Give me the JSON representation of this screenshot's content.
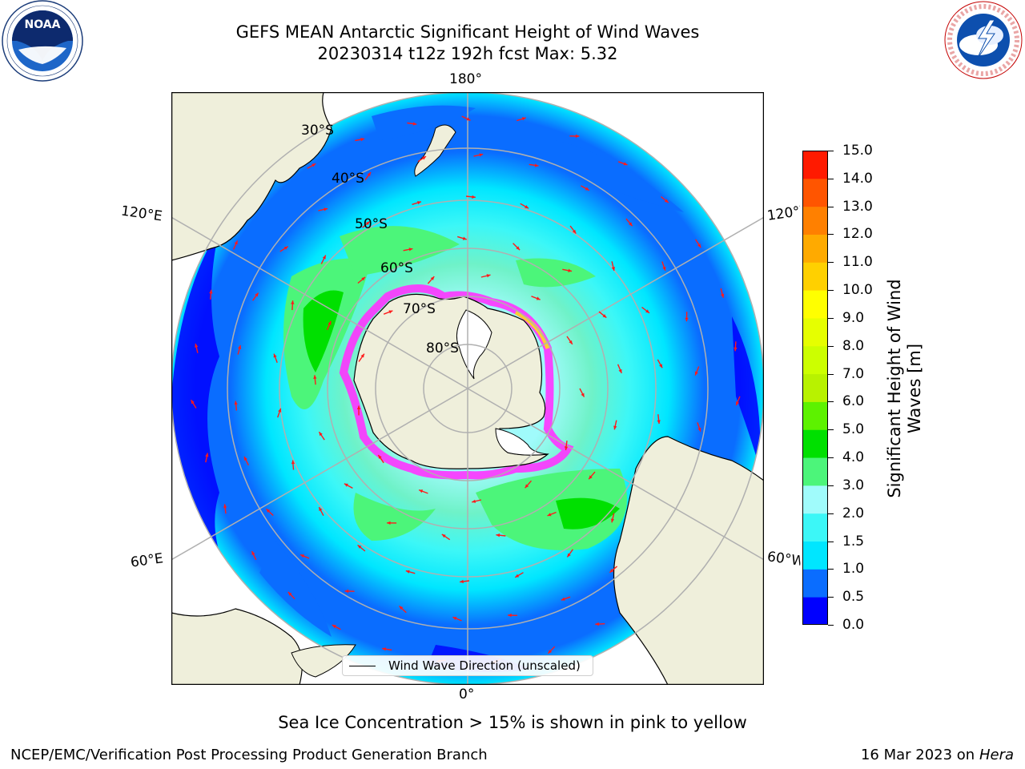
{
  "title": {
    "line1": "GEFS MEAN Antarctic Significant Height of Wind Waves",
    "line2": "20230314 t12z 192h fcst   Max: 5.32"
  },
  "logos": {
    "left": {
      "name": "noaa-logo",
      "text": "NOAA",
      "ring_text": "NATIONAL OCEANIC AND ATMOSPHERIC ADMINISTRATION · U.S. DEPARTMENT OF COMMERCE"
    },
    "right": {
      "name": "nws-logo",
      "ring_text": "NATIONAL WEATHER SERVICE"
    }
  },
  "map": {
    "projection": "south-polar-stereographic",
    "longitude_labels": {
      "top": "180°",
      "bottom": "0°",
      "upper_left": "120°E",
      "upper_right": "120°W",
      "lower_left": "60°E",
      "lower_right": "60°W"
    },
    "latitude_labels": [
      "30°S",
      "40°S",
      "50°S",
      "60°S",
      "70°S",
      "80°S"
    ],
    "colors": {
      "land": "#efefdb",
      "grid": "#b0b0b0",
      "arrow": "#ff1a1a",
      "ice": [
        "#ff66ff",
        "#ff33cc",
        "#ffcc33",
        "#ffff66"
      ]
    },
    "arrow_field_note_hidden": ""
  },
  "legend": {
    "label": "Wind Wave Direction (unscaled)"
  },
  "colorbar": {
    "label_line1": "Significant Height of Wind",
    "label_line2": "Waves [m]",
    "ticks": [
      "0.0",
      "0.5",
      "1.0",
      "1.5",
      "2.0",
      "3.0",
      "4.0",
      "5.0",
      "6.0",
      "7.0",
      "8.0",
      "9.0",
      "10.0",
      "11.0",
      "12.0",
      "13.0",
      "14.0",
      "15.0"
    ],
    "colors": [
      "#0000ff",
      "#0a6dff",
      "#00e6ff",
      "#3cf7f7",
      "#a0fbfb",
      "#4cf57a",
      "#00e000",
      "#5df200",
      "#b8f200",
      "#ccff00",
      "#e6ff00",
      "#ffff00",
      "#ffd000",
      "#ffaa00",
      "#ff8000",
      "#ff5500",
      "#ff1a00"
    ]
  },
  "ice_note": "Sea Ice Concentration > 15% is shown in pink to yellow",
  "footer": {
    "left": "NCEP/EMC/Verification Post Processing Product Generation Branch",
    "right_date": "16 Mar 2023 on",
    "right_host": "Hera"
  }
}
